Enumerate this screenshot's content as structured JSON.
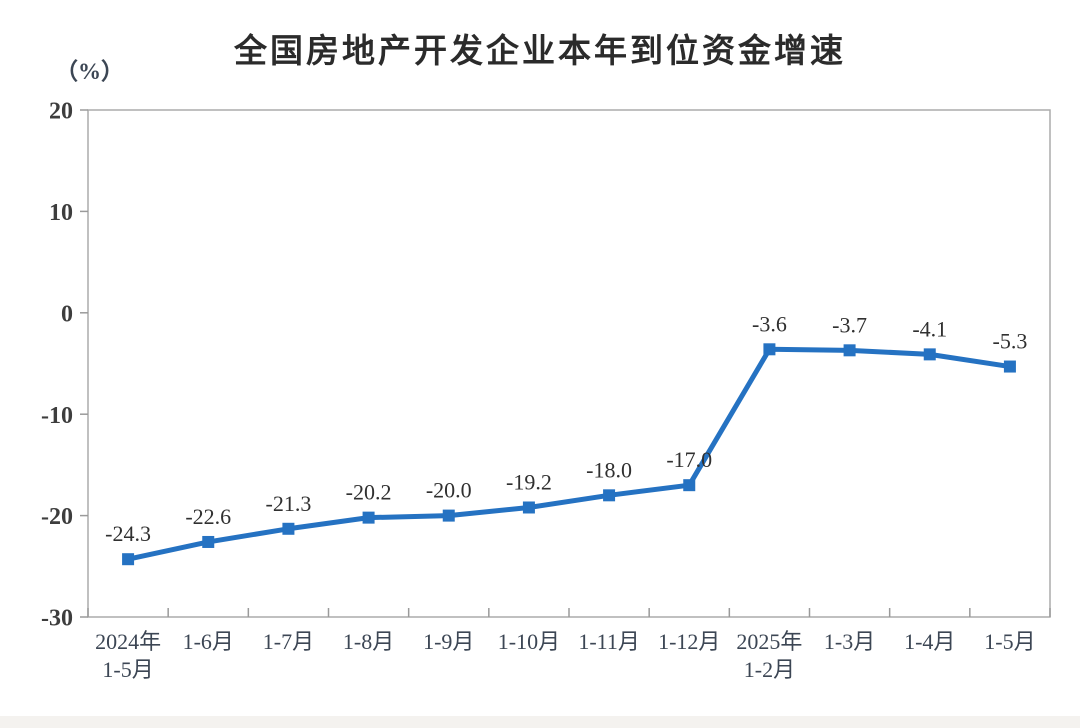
{
  "chart_data": {
    "type": "line",
    "title": "全国房地产开发企业本年到位资金增速",
    "unit_label": "（%）",
    "categories": [
      "2024年\n1-5月",
      "1-6月",
      "1-7月",
      "1-8月",
      "1-9月",
      "1-10月",
      "1-11月",
      "1-12月",
      "2025年\n1-2月",
      "1-3月",
      "1-4月",
      "1-5月"
    ],
    "values": [
      -24.3,
      -22.6,
      -21.3,
      -20.2,
      -20.0,
      -19.2,
      -18.0,
      -17.0,
      -3.6,
      -3.7,
      -4.1,
      -5.3
    ],
    "data_labels": [
      "-24.3",
      "-22.6",
      "-21.3",
      "-20.2",
      "-20.0",
      "-19.2",
      "-18.0",
      "-17.0",
      "-3.6",
      "-3.7",
      "-4.1",
      "-5.3"
    ],
    "y_ticks": [
      20,
      10,
      0,
      -10,
      -20,
      -30
    ],
    "ylim": [
      -30,
      20
    ],
    "grid": false,
    "legend": "none",
    "line_color": "#2572c2",
    "marker": "square",
    "marker_color": "#2572c2",
    "axis_color": "#ababab",
    "tick_color": "#9a9a9a",
    "y_label_color": "#3d3d3d",
    "x_label_color": "#3c4654",
    "data_label_color": "#303030",
    "title_color": "#2b2b2b",
    "footer_strip_color": "#f4f2ef"
  }
}
